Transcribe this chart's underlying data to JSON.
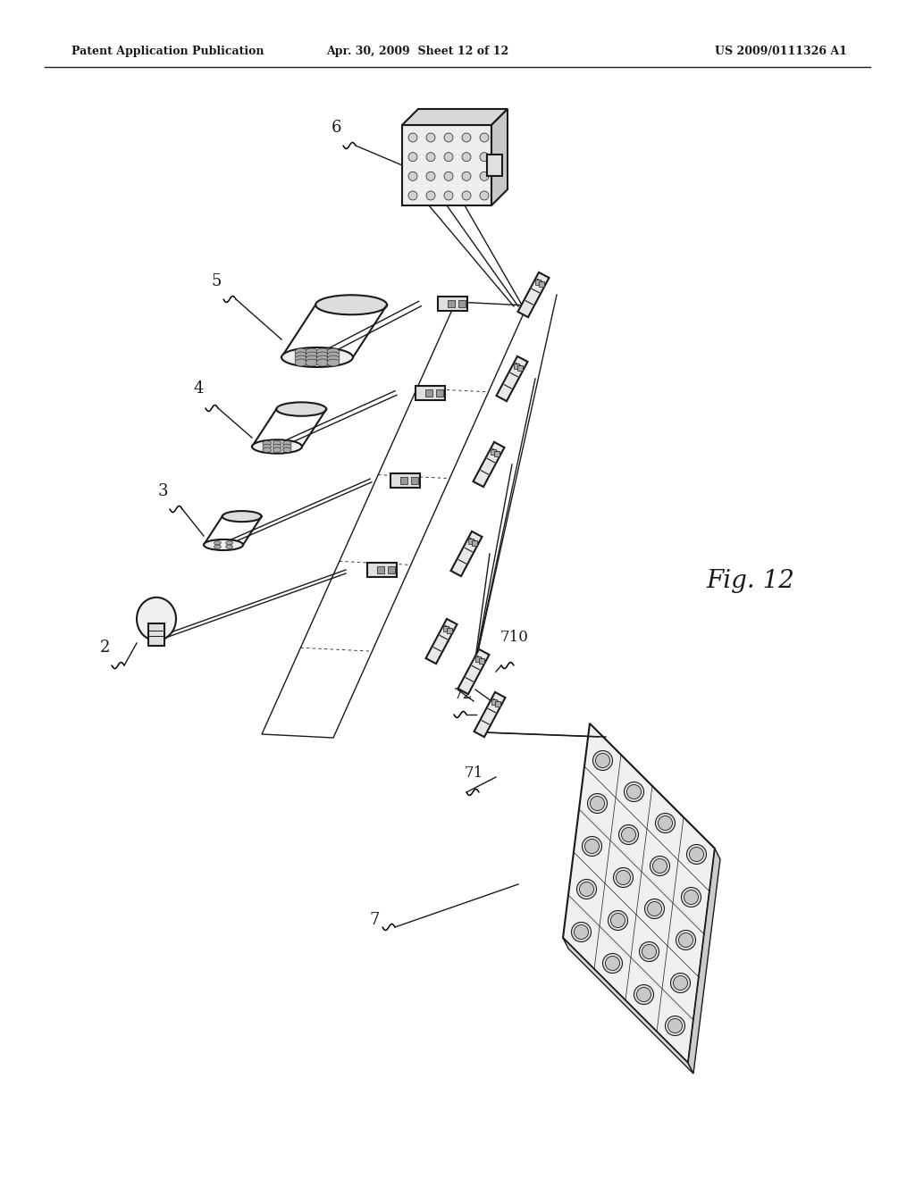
{
  "header_left": "Patent Application Publication",
  "header_mid": "Apr. 30, 2009  Sheet 12 of 12",
  "header_right": "US 2009/0111326 A1",
  "fig_label": "Fig. 12",
  "background_color": "#ffffff",
  "line_color": "#1a1a1a",
  "text_color": "#1a1a1a",
  "lw_thin": 1.0,
  "lw_med": 1.5,
  "lw_thick": 2.0
}
